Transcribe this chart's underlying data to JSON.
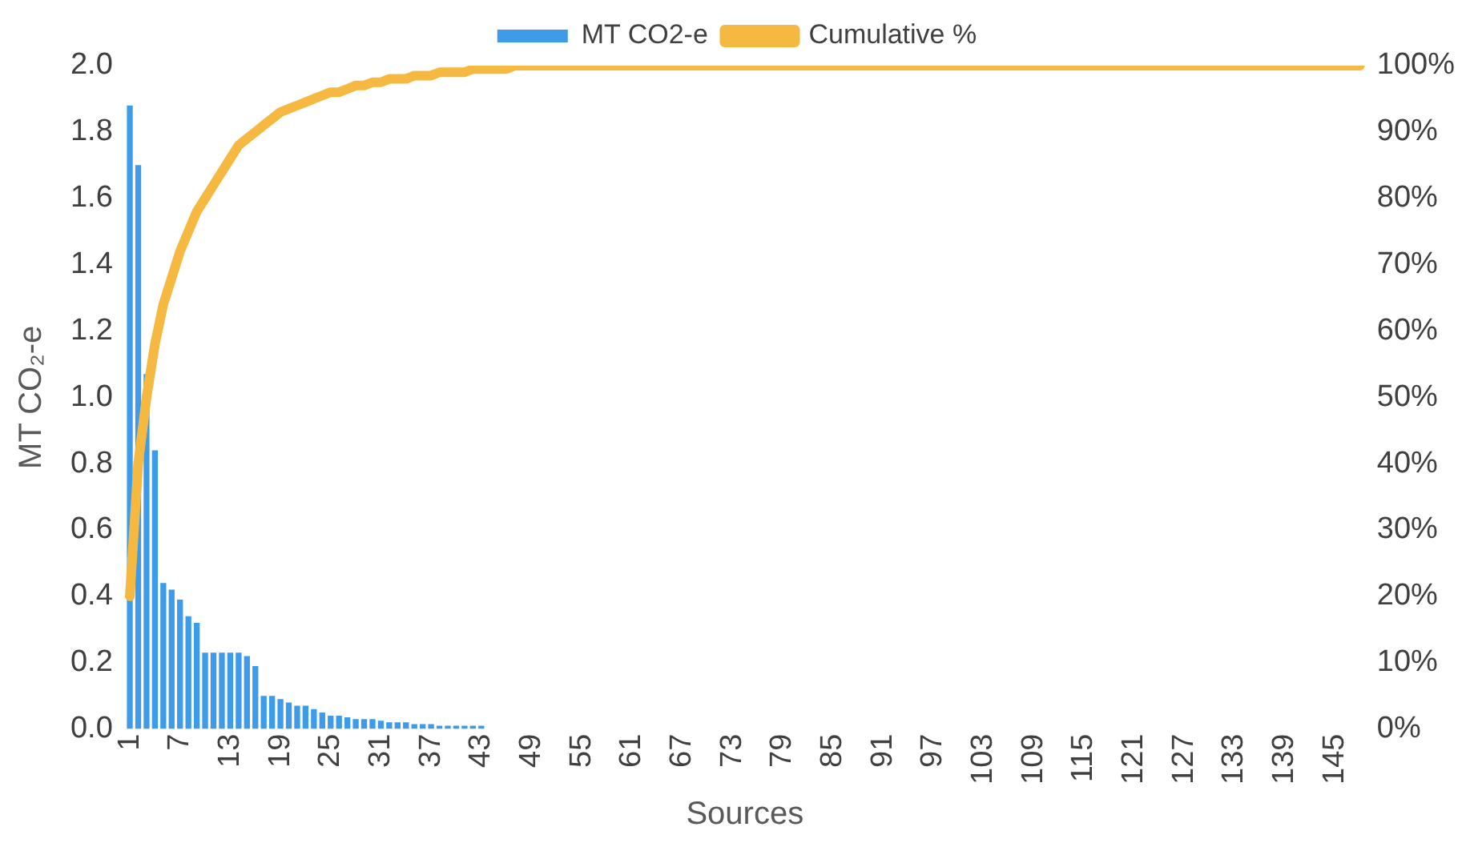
{
  "chart_data": {
    "type": "bar",
    "xlabel": "Sources",
    "ylabel": "MT CO₂-e",
    "legend": "top",
    "grid": false,
    "categories": [
      "1",
      null,
      null,
      null,
      null,
      null,
      "7",
      null,
      null,
      null,
      null,
      null,
      "13",
      null,
      null,
      null,
      null,
      null,
      "19",
      null,
      null,
      null,
      null,
      null,
      "25",
      null,
      null,
      null,
      null,
      null,
      "31",
      null,
      null,
      null,
      null,
      null,
      "37",
      null,
      null,
      null,
      null,
      null,
      "43",
      null,
      null,
      null,
      null,
      null,
      "49",
      null,
      null,
      null,
      null,
      null,
      "55",
      null,
      null,
      null,
      null,
      null,
      "61",
      null,
      null,
      null,
      null,
      null,
      "67",
      null,
      null,
      null,
      null,
      null,
      "73",
      null,
      null,
      null,
      null,
      null,
      "79",
      null,
      null,
      null,
      null,
      null,
      "85",
      null,
      null,
      null,
      null,
      null,
      "91",
      null,
      null,
      null,
      null,
      null,
      "97",
      null,
      null,
      null,
      null,
      null,
      "103",
      null,
      null,
      null,
      null,
      null,
      "109",
      null,
      null,
      null,
      null,
      null,
      "115",
      null,
      null,
      null,
      null,
      null,
      "121",
      null,
      null,
      null,
      null,
      null,
      "127",
      null,
      null,
      null,
      null,
      null,
      "133",
      null,
      null,
      null,
      null,
      null,
      "139",
      null,
      null,
      null,
      null,
      null,
      "145",
      null,
      null,
      null
    ],
    "series": [
      {
        "name": "MT CO2-e",
        "color": "#3d9be9",
        "values": [
          1.88,
          1.7,
          1.07,
          0.84,
          0.44,
          0.42,
          0.39,
          0.34,
          0.32,
          0.23,
          0.23,
          0.23,
          0.23,
          0.23,
          0.22,
          0.19,
          0.1,
          0.1,
          0.09,
          0.08,
          0.07,
          0.07,
          0.06,
          0.05,
          0.04,
          0.04,
          0.035,
          0.03,
          0.03,
          0.03,
          0.025,
          0.02,
          0.02,
          0.02,
          0.015,
          0.015,
          0.015,
          0.01,
          0.01,
          0.01,
          0.01,
          0.01,
          0.01,
          null,
          null,
          null,
          null,
          null,
          null,
          null,
          null,
          null,
          null,
          null,
          null,
          null,
          null,
          null,
          null,
          null,
          null,
          null,
          null,
          null,
          null,
          null,
          null,
          null,
          null,
          null,
          null,
          null,
          null,
          null,
          null,
          null,
          null,
          null,
          null,
          null,
          null,
          null,
          null,
          null,
          null,
          null,
          null,
          null,
          null,
          null,
          null,
          null,
          null,
          null,
          null,
          null,
          null,
          null,
          null,
          null,
          null,
          null,
          null,
          null,
          null,
          null,
          null,
          null,
          null,
          null,
          null,
          null,
          null,
          null,
          null,
          null,
          null,
          null,
          null,
          null,
          null,
          null,
          null,
          null,
          null,
          null,
          null,
          null,
          null,
          null,
          null,
          null,
          null,
          null,
          null,
          null,
          null,
          null,
          null,
          null,
          null,
          null,
          null,
          null,
          null,
          null,
          null,
          null
        ]
      },
      {
        "name": "Cumulative %",
        "type": "line",
        "axis": "y2",
        "color": "#f5b942",
        "values": [
          20,
          40,
          50,
          58,
          64,
          68,
          72,
          75,
          78,
          80,
          82,
          84,
          86,
          88,
          89,
          90,
          91,
          92,
          93,
          93.5,
          94,
          94.5,
          95,
          95.5,
          96,
          96,
          96.5,
          97,
          97,
          97.5,
          97.5,
          98,
          98,
          98,
          98.5,
          98.5,
          98.5,
          99,
          99,
          99,
          99,
          99.5,
          99.5,
          99.5,
          99.5,
          99.5,
          100,
          100,
          100,
          100,
          100,
          100,
          100,
          100,
          100,
          100,
          100,
          100,
          100,
          100,
          100,
          100,
          100,
          100,
          100,
          100,
          100,
          100,
          100,
          100,
          100,
          100,
          100,
          100,
          100,
          100,
          100,
          100,
          100,
          100,
          100,
          100,
          100,
          100,
          100,
          100,
          100,
          100,
          100,
          100,
          100,
          100,
          100,
          100,
          100,
          100,
          100,
          100,
          100,
          100,
          100,
          100,
          100,
          100,
          100,
          100,
          100,
          100,
          100,
          100,
          100,
          100,
          100,
          100,
          100,
          100,
          100,
          100,
          100,
          100,
          100,
          100,
          100,
          100,
          100,
          100,
          100,
          100,
          100,
          100,
          100,
          100,
          100,
          100,
          100,
          100,
          100,
          100,
          100,
          100,
          100,
          100,
          100,
          100,
          100,
          100,
          100,
          100
        ]
      }
    ],
    "ylim": [
      0,
      2
    ],
    "yticks": [
      {
        "value": 0,
        "label": "0.0"
      },
      0.2,
      0.4,
      0.6,
      0.8,
      {
        "value": 1,
        "label": "1.0"
      },
      1.2,
      1.4,
      1.6,
      1.8,
      {
        "value": 2,
        "label": "2.0"
      }
    ],
    "y2lim": [
      0,
      100
    ],
    "y2ticks": [
      {
        "value": 0,
        "label": "0%"
      },
      {
        "value": 10,
        "label": "10%"
      },
      {
        "value": 20,
        "label": "20%"
      },
      {
        "value": 30,
        "label": "30%"
      },
      {
        "value": 40,
        "label": "40%"
      },
      {
        "value": 50,
        "label": "50%"
      },
      {
        "value": 60,
        "label": "60%"
      },
      {
        "value": 70,
        "label": "70%"
      },
      {
        "value": 80,
        "label": "80%"
      },
      {
        "value": 90,
        "label": "90%"
      },
      {
        "value": 100,
        "label": "100%"
      }
    ]
  }
}
